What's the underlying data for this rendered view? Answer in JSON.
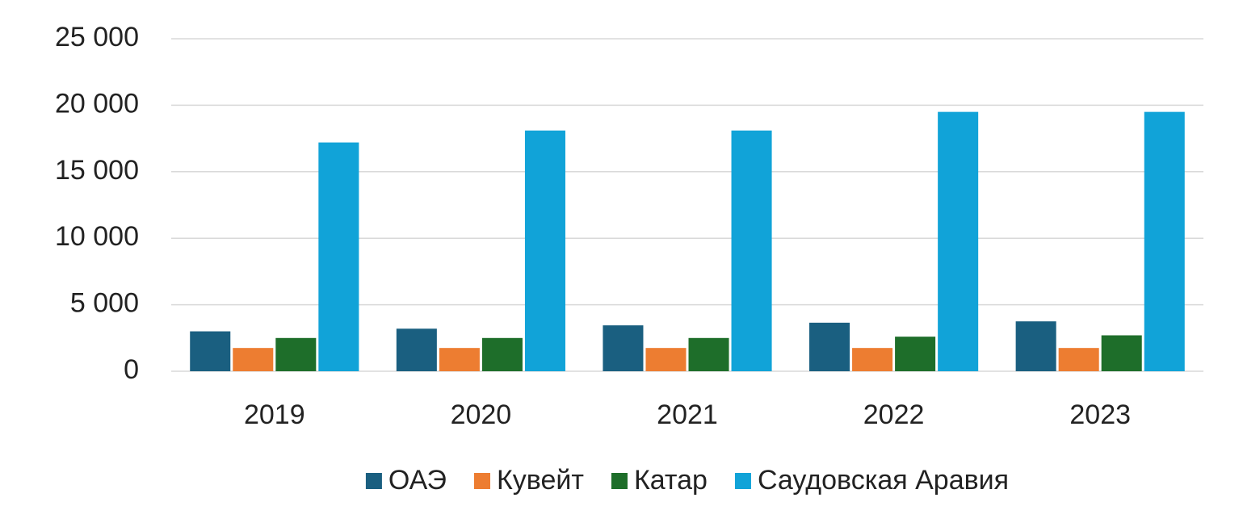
{
  "chart_data": {
    "type": "bar",
    "categories": [
      "2019",
      "2020",
      "2021",
      "2022",
      "2023"
    ],
    "series": [
      {
        "name": "ОАЭ",
        "color": "#1a5f80",
        "values": [
          3000,
          3200,
          3450,
          3650,
          3750
        ]
      },
      {
        "name": "Кувейт",
        "color": "#ed7d31",
        "values": [
          1750,
          1750,
          1750,
          1750,
          1750
        ]
      },
      {
        "name": "Катар",
        "color": "#1e6e2a",
        "values": [
          2500,
          2500,
          2500,
          2600,
          2700
        ]
      },
      {
        "name": "Саудовская Аравия",
        "color": "#11a3d8",
        "values": [
          17200,
          18100,
          18100,
          19500,
          19500
        ]
      }
    ],
    "ylim": [
      0,
      25000
    ],
    "yticks": [
      0,
      {
        "value": 5000,
        "label": "5 000"
      },
      {
        "value": 10000,
        "label": "10 000"
      },
      {
        "value": 15000,
        "label": "15 000"
      },
      {
        "value": 20000,
        "label": "20 000"
      },
      {
        "value": 25000,
        "label": "25 000"
      }
    ],
    "grid": true,
    "legend": "bottom"
  }
}
